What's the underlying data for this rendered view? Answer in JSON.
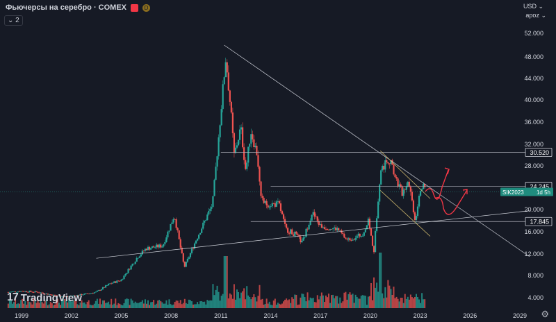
{
  "header": {
    "title": "Фьючерсы на серебро · COMEX",
    "d_badge": "D",
    "collapse_label": "2",
    "currency": "USD",
    "mode": "арoz"
  },
  "brand": {
    "name": "TradingView"
  },
  "colors": {
    "background": "#161a25",
    "up": "#26a69a",
    "down": "#ef5350",
    "level_line": "#b2b5be",
    "annotation": "#f23645",
    "channel": "#c8b26a",
    "trendline": "#d1d4dc"
  },
  "chart_data": {
    "type": "candlestick",
    "x_ticks": [
      "1999",
      "2002",
      "2005",
      "2008",
      "2011",
      "2014",
      "2017",
      "2020",
      "2023",
      "2026",
      "2029"
    ],
    "y_ticks": [
      "52.000",
      "48.000",
      "44.000",
      "40.000",
      "36.000",
      "32.000",
      "28.000",
      "20.000",
      "16.000",
      "12.000",
      "8.000",
      "4.000"
    ],
    "price_labels": [
      {
        "label": "30.520",
        "value": 30.52,
        "style": "outline"
      },
      {
        "label": "24.245",
        "value": 24.245,
        "style": "outline"
      },
      {
        "label": "17.845",
        "value": 17.845,
        "style": "outline"
      }
    ],
    "current_price_label": {
      "symbol": "SIK2023",
      "countdown": "1d 5h",
      "value": 24.0
    },
    "price_path": [
      [
        1998.2,
        5.0
      ],
      [
        1999.0,
        5.2
      ],
      [
        2000.0,
        5.0
      ],
      [
        2001.0,
        4.4
      ],
      [
        2001.7,
        4.2
      ],
      [
        2002.5,
        4.5
      ],
      [
        2003.5,
        5.0
      ],
      [
        2004.3,
        6.5
      ],
      [
        2005.0,
        7.2
      ],
      [
        2006.0,
        11.5
      ],
      [
        2006.5,
        13.0
      ],
      [
        2007.5,
        13.5
      ],
      [
        2008.2,
        19.0
      ],
      [
        2008.8,
        9.5
      ],
      [
        2009.5,
        14.5
      ],
      [
        2010.5,
        21.0
      ],
      [
        2011.3,
        48.0
      ],
      [
        2011.6,
        38.0
      ],
      [
        2011.8,
        30.0
      ],
      [
        2012.2,
        35.0
      ],
      [
        2012.5,
        27.0
      ],
      [
        2012.8,
        34.5
      ],
      [
        2013.2,
        30.0
      ],
      [
        2013.4,
        22.0
      ],
      [
        2013.7,
        21.0
      ],
      [
        2014.5,
        21.0
      ],
      [
        2014.9,
        16.5
      ],
      [
        2015.5,
        15.5
      ],
      [
        2015.9,
        14.0
      ],
      [
        2016.5,
        19.5
      ],
      [
        2017.0,
        17.0
      ],
      [
        2018.0,
        16.5
      ],
      [
        2018.6,
        14.5
      ],
      [
        2019.5,
        15.5
      ],
      [
        2019.9,
        18.0
      ],
      [
        2020.2,
        12.0
      ],
      [
        2020.6,
        27.0
      ],
      [
        2021.1,
        29.5
      ],
      [
        2021.5,
        26.0
      ],
      [
        2021.9,
        23.0
      ],
      [
        2022.3,
        25.5
      ],
      [
        2022.7,
        18.0
      ],
      [
        2023.0,
        24.0
      ],
      [
        2023.3,
        24.0
      ]
    ],
    "horizontal_levels": [
      30.52,
      24.245,
      17.845
    ],
    "volume_note": "volume bars along bottom",
    "annotations": [
      "red arrow up",
      "red wave arrow up"
    ]
  }
}
